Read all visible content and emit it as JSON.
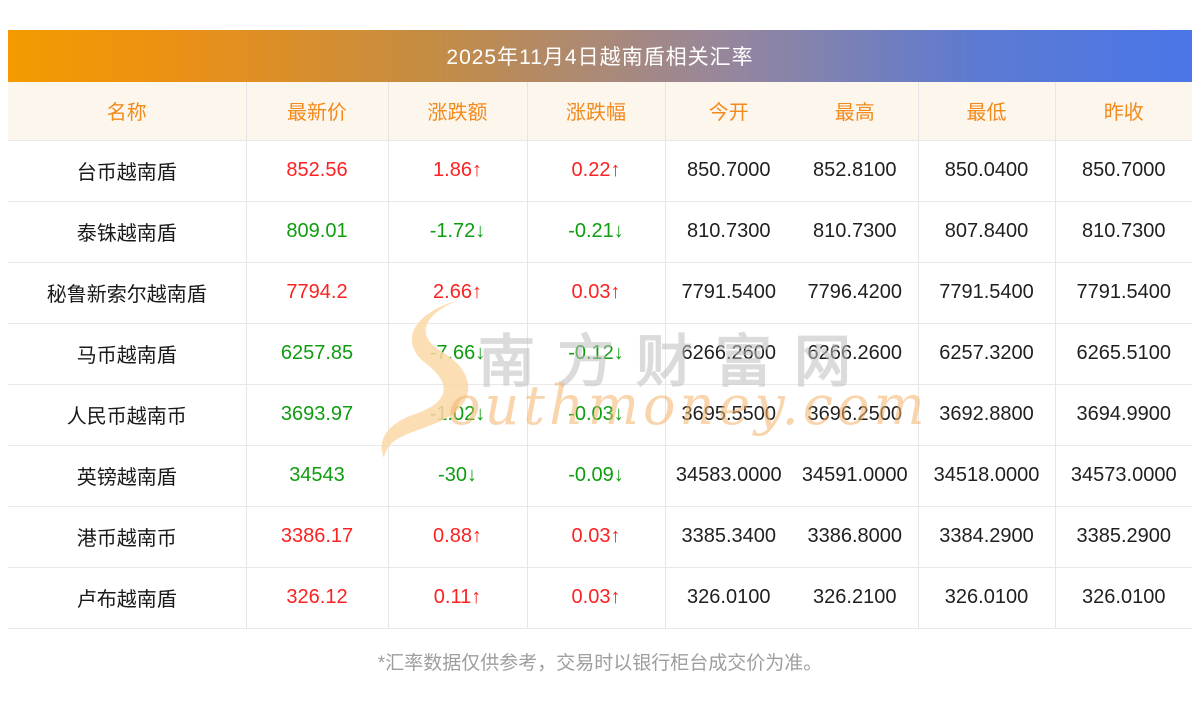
{
  "banner": {
    "title": "2025年11月4日越南盾相关汇率"
  },
  "watermark": {
    "cn": "南方财富网",
    "en": "outhmoney.com"
  },
  "footer": {
    "note": "*汇率数据仅供参考，交易时以银行柜台成交价为准。"
  },
  "colors": {
    "up": "#fa2222",
    "down": "#0f9d0f",
    "header_text": "#f28a1c",
    "header_bg": "#fdf6ed",
    "banner_gradient_start": "#f49b00",
    "banner_gradient_end": "#4a76e8"
  },
  "chart_data": {
    "type": "table",
    "title": "2025年11月4日越南盾相关汇率",
    "columns": [
      "名称",
      "最新价",
      "涨跌额",
      "涨跌幅",
      "今开",
      "最高",
      "最低",
      "昨收"
    ],
    "rows": [
      {
        "name": "台币越南盾",
        "latest": "852.56",
        "change": "1.86↑",
        "pct": "0.22↑",
        "direction": "up",
        "open": "850.7000",
        "high": "852.8100",
        "low": "850.0400",
        "prev_close": "850.7000"
      },
      {
        "name": "泰铢越南盾",
        "latest": "809.01",
        "change": "-1.72↓",
        "pct": "-0.21↓",
        "direction": "down",
        "open": "810.7300",
        "high": "810.7300",
        "low": "807.8400",
        "prev_close": "810.7300"
      },
      {
        "name": "秘鲁新索尔越南盾",
        "latest": "7794.2",
        "change": "2.66↑",
        "pct": "0.03↑",
        "direction": "up",
        "open": "7791.5400",
        "high": "7796.4200",
        "low": "7791.5400",
        "prev_close": "7791.5400"
      },
      {
        "name": "马币越南盾",
        "latest": "6257.85",
        "change": "-7.66↓",
        "pct": "-0.12↓",
        "direction": "down",
        "open": "6266.2600",
        "high": "6266.2600",
        "low": "6257.3200",
        "prev_close": "6265.5100"
      },
      {
        "name": "人民币越南币",
        "latest": "3693.97",
        "change": "-1.02↓",
        "pct": "-0.03↓",
        "direction": "down",
        "open": "3695.5500",
        "high": "3696.2500",
        "low": "3692.8800",
        "prev_close": "3694.9900"
      },
      {
        "name": "英镑越南盾",
        "latest": "34543",
        "change": "-30↓",
        "pct": "-0.09↓",
        "direction": "down",
        "open": "34583.0000",
        "high": "34591.0000",
        "low": "34518.0000",
        "prev_close": "34573.0000"
      },
      {
        "name": "港币越南币",
        "latest": "3386.17",
        "change": "0.88↑",
        "pct": "0.03↑",
        "direction": "up",
        "open": "3385.3400",
        "high": "3386.8000",
        "low": "3384.2900",
        "prev_close": "3385.2900"
      },
      {
        "name": "卢布越南盾",
        "latest": "326.12",
        "change": "0.11↑",
        "pct": "0.03↑",
        "direction": "up",
        "open": "326.0100",
        "high": "326.2100",
        "low": "326.0100",
        "prev_close": "326.0100"
      }
    ]
  }
}
